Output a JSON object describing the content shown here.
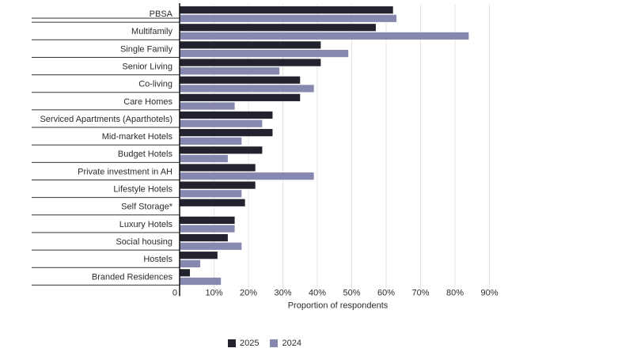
{
  "chart_data": {
    "type": "bar",
    "orientation": "horizontal",
    "categories": [
      "PBSA",
      "Multifamily",
      "Single Family",
      "Senior Living",
      "Co-living",
      "Care Homes",
      "Serviced Apartments (Aparthotels)",
      "Mid-market Hotels",
      "Budget Hotels",
      "Private investment in AH",
      "Lifestyle Hotels",
      "Self Storage*",
      "Luxury Hotels",
      "Social housing",
      "Hostels",
      "Branded Residences"
    ],
    "series": [
      {
        "name": "2025",
        "color": "#23222f",
        "values": [
          62,
          57,
          41,
          41,
          35,
          35,
          27,
          27,
          24,
          22,
          22,
          19,
          16,
          14,
          11,
          3
        ]
      },
      {
        "name": "2024",
        "color": "#8688b0",
        "values": [
          63,
          84,
          49,
          29,
          39,
          16,
          24,
          18,
          14,
          39,
          18,
          null,
          16,
          18,
          6,
          12
        ]
      }
    ],
    "xlim": [
      0,
      90
    ],
    "xticks": [
      0,
      10,
      20,
      30,
      40,
      50,
      60,
      70,
      80,
      90
    ],
    "xtick_labels": [
      "0",
      "10%",
      "20%",
      "30%",
      "40%",
      "50%",
      "60%",
      "70%",
      "80%",
      "90%"
    ],
    "xlabel": "Proportion of respondents",
    "ylabel": "",
    "title": "",
    "grid": true,
    "legend_position": "bottom-center"
  }
}
